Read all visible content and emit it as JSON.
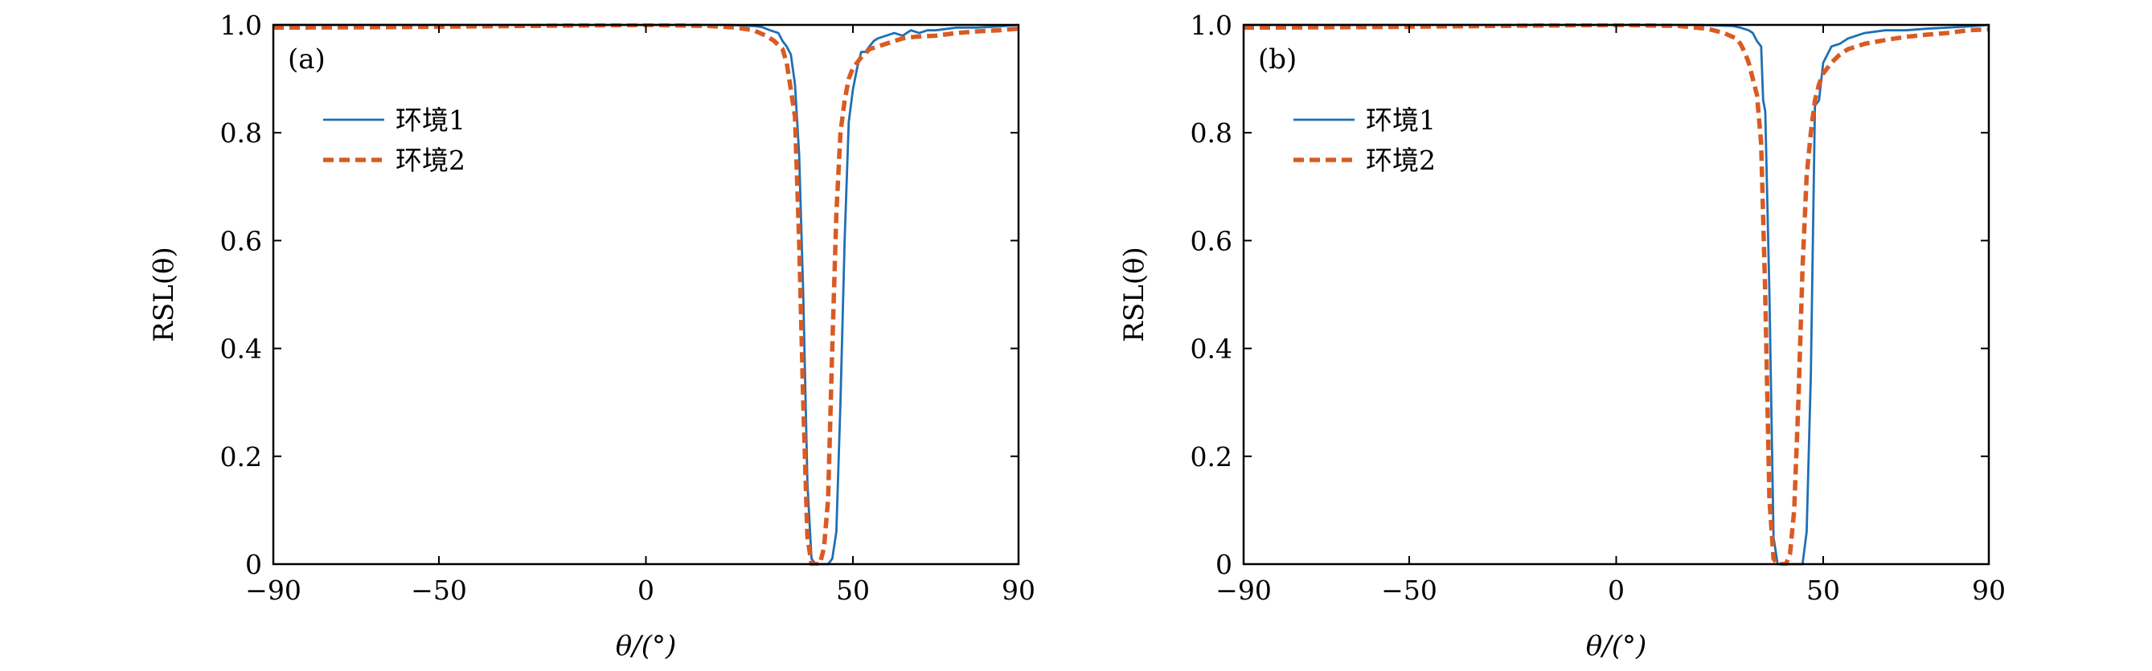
{
  "colors": {
    "env1": "#1f6fb4",
    "env2": "#d95b23",
    "axis": "#000000"
  },
  "chart_data": [
    {
      "type": "line",
      "panel_label": "(a)",
      "xlabel": "θ/(°)",
      "ylabel": "RSL(θ)",
      "xlim": [
        -90,
        90
      ],
      "ylim": [
        0,
        1
      ],
      "xticks": [
        -90,
        -50,
        0,
        50,
        90
      ],
      "xtick_labels": [
        "−90",
        "−50",
        "0",
        "50",
        "90"
      ],
      "yticks": [
        0,
        0.2,
        0.4,
        0.6,
        0.8,
        1.0
      ],
      "ytick_labels": [
        "0",
        "0.2",
        "0.4",
        "0.6",
        "0.8",
        "1.0"
      ],
      "legend_position": "upper-left",
      "series": [
        {
          "name": "环境1",
          "style": "solid",
          "x": [
            -90,
            -60,
            -30,
            0,
            20,
            26,
            28,
            30,
            32,
            33,
            34,
            35,
            36,
            37,
            38,
            39,
            40,
            41,
            42,
            43,
            44,
            45,
            46,
            47,
            48,
            49,
            50,
            51,
            52,
            53,
            54,
            55,
            56,
            58,
            60,
            62,
            64,
            66,
            68,
            70,
            75,
            80,
            85,
            90
          ],
          "y": [
            1.0,
            1.0,
            1.0,
            1.0,
            1.0,
            0.998,
            0.996,
            0.99,
            0.985,
            0.97,
            0.96,
            0.945,
            0.89,
            0.76,
            0.5,
            0.15,
            0.01,
            0.0,
            0.0,
            0.0,
            0.0,
            0.01,
            0.06,
            0.3,
            0.6,
            0.82,
            0.88,
            0.92,
            0.95,
            0.95,
            0.96,
            0.97,
            0.975,
            0.98,
            0.985,
            0.98,
            0.99,
            0.985,
            0.99,
            0.99,
            0.995,
            0.995,
            0.997,
            1.0
          ]
        },
        {
          "name": "环境2",
          "style": "dashed",
          "x": [
            -90,
            -60,
            -30,
            0,
            15,
            22,
            26,
            29,
            31,
            33,
            34,
            35,
            36,
            37,
            38,
            39,
            40,
            41,
            42,
            43,
            44,
            45,
            46,
            47,
            48,
            49,
            50,
            52,
            54,
            56,
            58,
            60,
            62,
            65,
            70,
            75,
            80,
            85,
            90
          ],
          "y": [
            0.995,
            0.996,
            0.998,
            1.0,
            0.998,
            0.995,
            0.99,
            0.98,
            0.97,
            0.955,
            0.93,
            0.88,
            0.83,
            0.6,
            0.3,
            0.05,
            0.0,
            0.0,
            0.0,
            0.03,
            0.12,
            0.4,
            0.65,
            0.8,
            0.86,
            0.9,
            0.92,
            0.94,
            0.955,
            0.96,
            0.965,
            0.97,
            0.975,
            0.978,
            0.98,
            0.985,
            0.988,
            0.99,
            0.993
          ]
        }
      ]
    },
    {
      "type": "line",
      "panel_label": "(b)",
      "xlabel": "θ/(°)",
      "ylabel": "RSL(θ)",
      "xlim": [
        -90,
        90
      ],
      "ylim": [
        0,
        1
      ],
      "xticks": [
        -90,
        -50,
        0,
        50,
        90
      ],
      "xtick_labels": [
        "−90",
        "−50",
        "0",
        "50",
        "90"
      ],
      "yticks": [
        0,
        0.2,
        0.4,
        0.6,
        0.8,
        1.0
      ],
      "ytick_labels": [
        "0",
        "0.2",
        "0.4",
        "0.6",
        "0.8",
        "1.0"
      ],
      "legend_position": "upper-left",
      "series": [
        {
          "name": "环境1",
          "style": "solid",
          "x": [
            -90,
            -60,
            -30,
            0,
            20,
            28,
            30,
            32,
            33,
            34,
            35,
            35.5,
            36,
            37,
            38,
            39,
            40,
            41,
            42,
            43,
            44,
            45,
            46,
            47,
            48,
            49,
            50,
            51,
            52,
            54,
            56,
            58,
            60,
            65,
            70,
            75,
            80,
            85,
            90
          ],
          "y": [
            1.0,
            1.0,
            1.0,
            1.0,
            1.0,
            0.998,
            0.995,
            0.99,
            0.985,
            0.97,
            0.96,
            0.86,
            0.84,
            0.5,
            0.05,
            0.0,
            0.0,
            0.0,
            0.0,
            0.0,
            0.0,
            0.0,
            0.06,
            0.35,
            0.85,
            0.86,
            0.93,
            0.945,
            0.96,
            0.965,
            0.975,
            0.98,
            0.985,
            0.99,
            0.99,
            0.993,
            0.995,
            0.997,
            1.0
          ]
        },
        {
          "name": "环境2",
          "style": "dashed",
          "x": [
            -90,
            -60,
            -30,
            0,
            15,
            22,
            26,
            29,
            30,
            31,
            32,
            33,
            34,
            35,
            36,
            37,
            38,
            39,
            40,
            41,
            42,
            43,
            44,
            45,
            46,
            47,
            48,
            49,
            50,
            52,
            54,
            56,
            60,
            65,
            70,
            75,
            80,
            85,
            90
          ],
          "y": [
            0.995,
            0.996,
            0.998,
            1.0,
            0.998,
            0.993,
            0.985,
            0.975,
            0.965,
            0.95,
            0.93,
            0.9,
            0.87,
            0.78,
            0.5,
            0.12,
            0.01,
            0.0,
            0.0,
            0.0,
            0.02,
            0.1,
            0.3,
            0.55,
            0.72,
            0.8,
            0.86,
            0.89,
            0.91,
            0.93,
            0.945,
            0.955,
            0.965,
            0.972,
            0.978,
            0.982,
            0.985,
            0.99,
            0.992
          ]
        }
      ]
    }
  ]
}
